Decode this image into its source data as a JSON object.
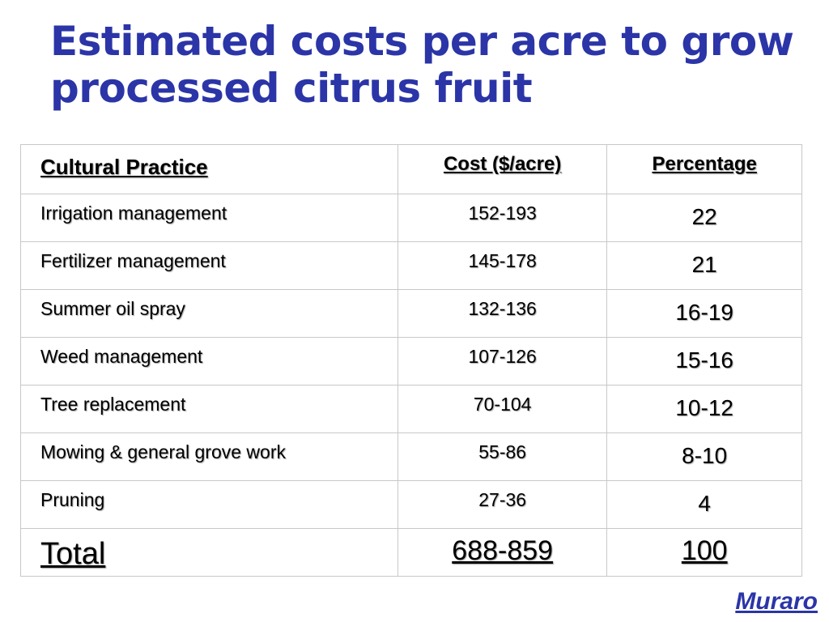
{
  "title": {
    "line1": "Estimated costs per acre to grow",
    "line2": "processed citrus fruit"
  },
  "table": {
    "headers": {
      "practice": "Cultural Practice",
      "cost": "Cost ($/acre)",
      "percentage": "Percentage"
    },
    "rows": [
      {
        "practice": "Irrigation management",
        "cost": "152-193",
        "percentage": "22"
      },
      {
        "practice": "Fertilizer management",
        "cost": "145-178",
        "percentage": "21"
      },
      {
        "practice": "Summer oil spray",
        "cost": "132-136",
        "percentage": "16-19"
      },
      {
        "practice": "Weed management",
        "cost": "107-126",
        "percentage": "15-16"
      },
      {
        "practice": "Tree replacement",
        "cost": "70-104",
        "percentage": "10-12"
      },
      {
        "practice": "Mowing & general grove work",
        "cost": "55-86",
        "percentage": "8-10"
      },
      {
        "practice": "Pruning",
        "cost": "27-36",
        "percentage": "4"
      }
    ],
    "total": {
      "label": "Total",
      "cost": "688-859",
      "percentage": "100"
    }
  },
  "signature": "Muraro",
  "colors": {
    "title": "#2b35a7",
    "border": "#c8c8c8"
  }
}
